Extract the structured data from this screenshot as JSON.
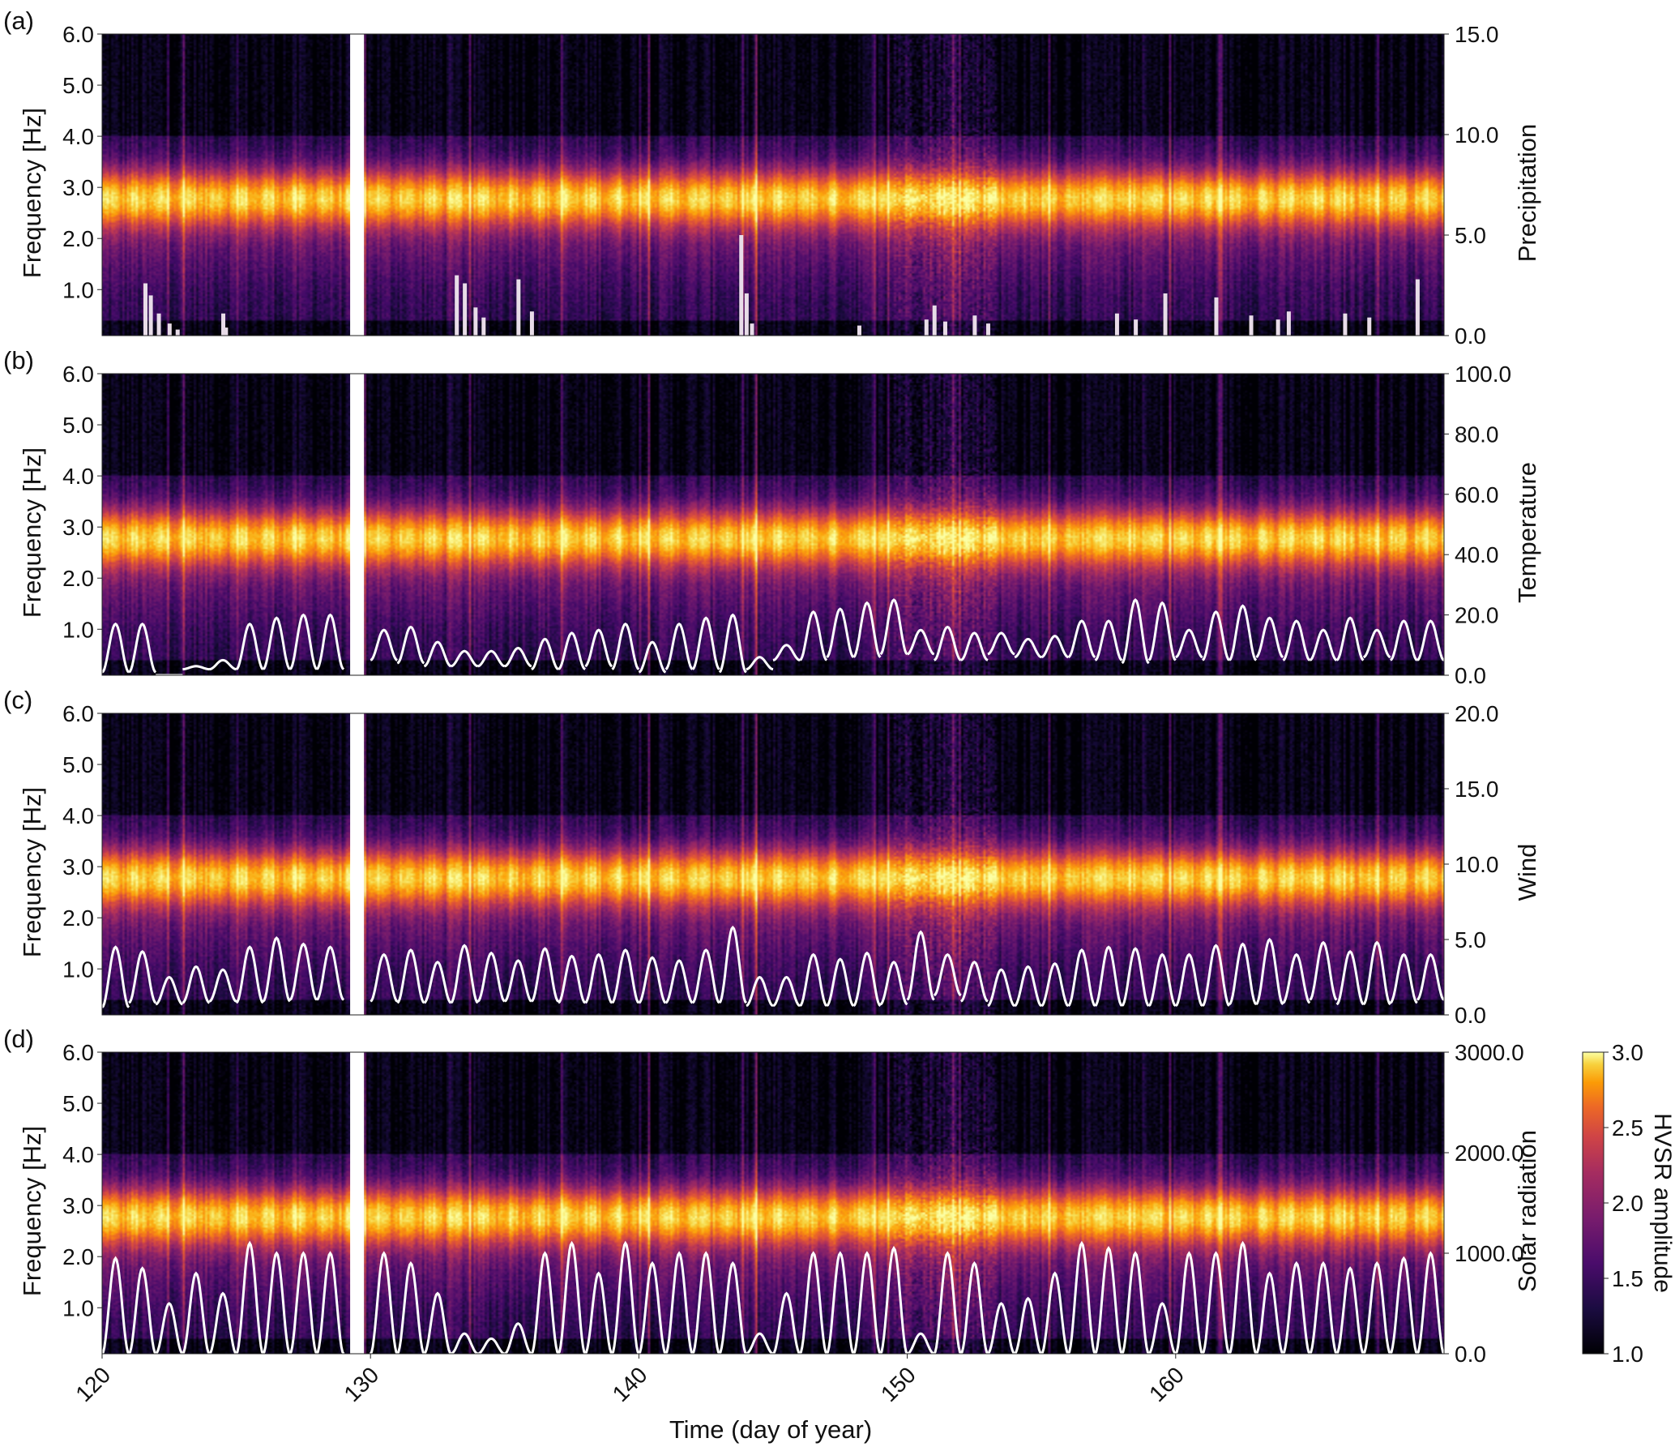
{
  "figure": {
    "x_axis_label": "Time (day of year)",
    "y_axis_label": "Frequency [Hz]",
    "colorbar_label": "HVSR amplitude",
    "colorbar_ticks": [
      "1.0",
      "1.5",
      "2.0",
      "2.5",
      "3.0"
    ]
  },
  "colors": {
    "overlay_line": "#ffffff",
    "gap_fill": "#ffffff",
    "colormap": "inferno"
  },
  "chart_data": [
    {
      "type": "heatmap",
      "panel_label": "(a)",
      "title": "",
      "xlabel": "",
      "ylabel": "Frequency [Hz]",
      "xlim": [
        120,
        170
      ],
      "ylim": [
        0.1,
        6.0
      ],
      "y_ticks": [
        "1.0",
        "2.0",
        "3.0",
        "4.0",
        "5.0",
        "6.0"
      ],
      "x_ticks": [
        "120",
        "130",
        "140",
        "150",
        "160"
      ],
      "data_gap": [
        129,
        130
      ],
      "peak_frequency_hz": 2.8,
      "colorscale": {
        "min": 1.0,
        "max": 3.0
      },
      "overlay": {
        "name": "Precipitation",
        "style": "filled",
        "y2lim": [
          0,
          15
        ],
        "y2_ticks": [
          "0.0",
          "5.0",
          "10.0",
          "15.0"
        ],
        "x": [
          121.6,
          121.8,
          122.1,
          122.5,
          122.8,
          124.5,
          124.6,
          133.2,
          133.5,
          133.9,
          134.2,
          135.5,
          136.0,
          143.8,
          144.0,
          144.2,
          148.2,
          150.7,
          151.0,
          151.4,
          152.5,
          153.0,
          157.8,
          158.5,
          159.6,
          161.5,
          162.8,
          163.8,
          164.2,
          166.3,
          167.2,
          169.0
        ],
        "values": [
          2.6,
          2.0,
          1.1,
          0.6,
          0.3,
          1.1,
          0.4,
          3.0,
          2.6,
          1.4,
          0.9,
          2.8,
          1.2,
          5.0,
          2.1,
          0.6,
          0.5,
          0.8,
          1.5,
          0.7,
          1.0,
          0.6,
          1.1,
          0.8,
          2.1,
          1.9,
          1.0,
          0.8,
          1.2,
          1.1,
          0.9,
          2.8
        ]
      }
    },
    {
      "type": "heatmap",
      "panel_label": "(b)",
      "title": "",
      "xlabel": "",
      "ylabel": "Frequency [Hz]",
      "xlim": [
        120,
        170
      ],
      "ylim": [
        0.1,
        6.0
      ],
      "y_ticks": [
        "1.0",
        "2.0",
        "3.0",
        "4.0",
        "5.0",
        "6.0"
      ],
      "x_ticks": [
        "120",
        "130",
        "140",
        "150",
        "160"
      ],
      "data_gap": [
        129,
        130
      ],
      "peak_frequency_hz": 2.8,
      "colorscale": {
        "min": 1.0,
        "max": 3.0
      },
      "overlay": {
        "name": "Temperature",
        "style": "line",
        "y2lim": [
          0,
          100
        ],
        "y2_ticks": [
          "0.0",
          "20.0",
          "40.0",
          "60.0",
          "80.0",
          "100.0"
        ],
        "diurnal": true,
        "daily_min": [
          1,
          1,
          0,
          2,
          2,
          2,
          2,
          2,
          2,
          4,
          5,
          4,
          3,
          3,
          3,
          3,
          2,
          2,
          3,
          2,
          1,
          2,
          2,
          1,
          2,
          5,
          5,
          6,
          6,
          7,
          7,
          5,
          5,
          7,
          6,
          6,
          6,
          5,
          4,
          5,
          6,
          5,
          5,
          6,
          5,
          5,
          5,
          6,
          5,
          5
        ],
        "daily_max": [
          17,
          17,
          0,
          3,
          5,
          17,
          19,
          20,
          20,
          0,
          15,
          16,
          11,
          8,
          8,
          9,
          12,
          14,
          15,
          17,
          11,
          17,
          19,
          20,
          6,
          10,
          21,
          22,
          24,
          25,
          15,
          16,
          14,
          14,
          12,
          13,
          18,
          18,
          25,
          24,
          15,
          21,
          23,
          19,
          18,
          15,
          19,
          15,
          18,
          18
        ]
      }
    },
    {
      "type": "heatmap",
      "panel_label": "(c)",
      "title": "",
      "xlabel": "",
      "ylabel": "Frequency [Hz]",
      "xlim": [
        120,
        170
      ],
      "ylim": [
        0.1,
        6.0
      ],
      "y_ticks": [
        "1.0",
        "2.0",
        "3.0",
        "4.0",
        "5.0",
        "6.0"
      ],
      "x_ticks": [
        "120",
        "130",
        "140",
        "150",
        "160"
      ],
      "data_gap": [
        129,
        130
      ],
      "peak_frequency_hz": 2.8,
      "colorscale": {
        "min": 1.0,
        "max": 3.0
      },
      "overlay": {
        "name": "Wind",
        "style": "line",
        "y2lim": [
          0,
          20
        ],
        "y2_ticks": [
          "0.0",
          "5.0",
          "10.0",
          "15.0",
          "20.0"
        ],
        "diurnal": true,
        "daily_min": [
          0.5,
          0.8,
          0.7,
          0.8,
          0.9,
          0.8,
          0.9,
          1.0,
          1.0,
          0,
          0.9,
          0.8,
          0.8,
          0.8,
          0.9,
          0.9,
          0.9,
          0.8,
          0.8,
          0.8,
          0.8,
          0.8,
          0.8,
          0.8,
          0.6,
          0.6,
          0.6,
          0.6,
          0.6,
          0.7,
          1.0,
          1.3,
          0.9,
          0.6,
          0.6,
          0.6,
          0.6,
          0.6,
          0.6,
          0.6,
          0.6,
          0.6,
          0.7,
          0.7,
          0.8,
          1.0,
          0.7,
          0.7,
          0.8,
          1.0
        ],
        "daily_max": [
          4.5,
          4.2,
          2.5,
          3.2,
          3.0,
          4.5,
          5.1,
          4.7,
          4.5,
          0,
          4.0,
          4.3,
          3.5,
          4.6,
          4.1,
          3.6,
          4.4,
          3.9,
          4.0,
          4.3,
          3.8,
          3.6,
          4.3,
          5.8,
          2.5,
          2.5,
          4.0,
          3.7,
          4.1,
          3.5,
          5.5,
          4.0,
          3.5,
          3.0,
          3.2,
          3.4,
          4.3,
          4.5,
          4.4,
          4.0,
          4.0,
          4.6,
          4.7,
          5.0,
          4.0,
          4.8,
          4.2,
          4.8,
          4.0,
          4.0
        ]
      }
    },
    {
      "type": "heatmap",
      "panel_label": "(d)",
      "title": "",
      "xlabel": "Time (day of year)",
      "ylabel": "Frequency [Hz]",
      "xlim": [
        120,
        170
      ],
      "ylim": [
        0.1,
        6.0
      ],
      "y_ticks": [
        "1.0",
        "2.0",
        "3.0",
        "4.0",
        "5.0",
        "6.0"
      ],
      "x_ticks": [
        "120",
        "130",
        "140",
        "150",
        "160"
      ],
      "data_gap": [
        129,
        130
      ],
      "peak_frequency_hz": 2.8,
      "colorscale": {
        "min": 1.0,
        "max": 3.0
      },
      "overlay": {
        "name": "Solar radiation",
        "style": "line",
        "y2lim": [
          0,
          3000
        ],
        "y2_ticks": [
          "0.0",
          "1000.0",
          "2000.0",
          "3000.0"
        ],
        "diurnal": true,
        "daily_min": [
          0,
          0,
          0,
          0,
          0,
          0,
          0,
          0,
          0,
          0,
          0,
          0,
          0,
          0,
          0,
          0,
          0,
          0,
          0,
          0,
          0,
          0,
          0,
          0,
          0,
          0,
          0,
          0,
          0,
          0,
          0,
          0,
          0,
          0,
          0,
          0,
          0,
          0,
          0,
          0,
          0,
          0,
          0,
          0,
          0,
          0,
          0,
          0,
          0,
          0
        ],
        "daily_max": [
          950,
          850,
          500,
          800,
          600,
          1100,
          1000,
          1000,
          1000,
          0,
          1000,
          900,
          600,
          200,
          150,
          300,
          1000,
          1100,
          800,
          1100,
          900,
          1000,
          1000,
          900,
          200,
          600,
          1000,
          1000,
          1000,
          1050,
          200,
          1000,
          900,
          500,
          550,
          800,
          1100,
          1050,
          1000,
          500,
          1000,
          1000,
          1100,
          800,
          900,
          900,
          850,
          900,
          950,
          1000
        ]
      }
    }
  ]
}
